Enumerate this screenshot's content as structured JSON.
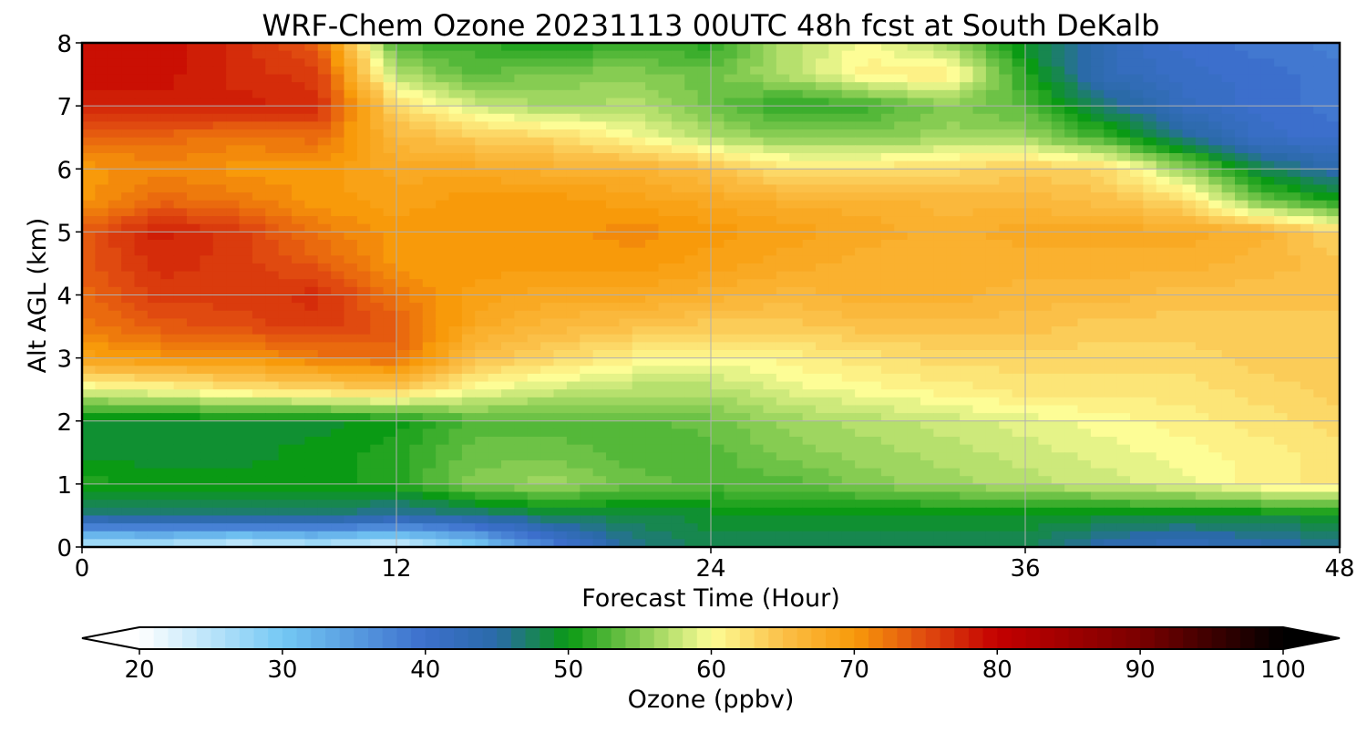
{
  "chart_data": {
    "type": "heatmap",
    "title": "WRF-Chem Ozone  20231113 00UTC 48h fcst at South DeKalb",
    "xlabel": "Forecast Time (Hour)",
    "ylabel": "Alt AGL (km)",
    "xlim": [
      0,
      48
    ],
    "ylim": [
      0,
      8
    ],
    "x_ticks": [
      "0",
      "12",
      "24",
      "36",
      "48"
    ],
    "y_ticks": [
      "0",
      "1",
      "2",
      "3",
      "4",
      "5",
      "6",
      "7",
      "8"
    ],
    "grid": true,
    "x": [
      0,
      3,
      6,
      9,
      12,
      15,
      18,
      21,
      24,
      27,
      30,
      33,
      36,
      39,
      42,
      45,
      48
    ],
    "y": [
      0,
      0.5,
      1,
      1.5,
      2,
      2.5,
      3,
      3.5,
      4,
      4.5,
      5,
      5.5,
      6,
      6.5,
      7,
      7.5,
      8
    ],
    "z": [
      [
        24,
        24,
        22,
        24,
        22,
        28,
        38,
        46,
        48,
        48,
        48,
        48,
        48,
        44,
        42,
        44,
        46
      ],
      [
        46,
        47,
        47,
        47,
        45,
        46,
        48,
        48,
        49,
        49,
        49,
        49,
        49,
        49,
        49,
        49,
        49
      ],
      [
        51,
        50,
        50,
        50,
        51,
        55,
        56,
        54,
        53,
        53,
        55,
        56,
        57,
        58,
        59,
        61,
        62
      ],
      [
        49,
        49,
        49,
        50,
        51,
        54,
        54,
        53,
        53,
        55,
        56,
        57,
        58,
        59,
        60,
        61,
        62
      ],
      [
        49,
        49,
        49,
        49,
        50,
        53,
        53,
        53,
        54,
        56,
        57,
        58,
        59,
        60,
        61,
        62,
        63
      ],
      [
        59,
        60,
        62,
        63,
        64,
        60,
        58,
        57,
        57,
        59,
        60,
        61,
        62,
        62,
        62,
        63,
        64
      ],
      [
        69,
        70,
        70,
        72,
        73,
        65,
        63,
        61,
        60,
        61,
        62,
        63,
        63,
        63,
        63,
        64,
        64
      ],
      [
        72,
        74,
        75,
        76,
        74,
        68,
        66,
        65,
        64,
        64,
        65,
        65,
        65,
        64,
        64,
        64,
        64
      ],
      [
        73,
        76,
        76,
        77,
        72,
        69,
        68,
        68,
        67,
        66,
        67,
        67,
        66,
        66,
        65,
        65,
        65
      ],
      [
        74,
        77,
        76,
        74,
        70,
        70,
        70,
        70,
        69,
        68,
        67,
        67,
        67,
        67,
        67,
        66,
        65
      ],
      [
        74,
        78,
        76,
        72,
        70,
        70,
        70,
        71,
        70,
        69,
        68,
        67,
        68,
        68,
        68,
        67,
        63
      ],
      [
        70,
        73,
        72,
        70,
        69,
        70,
        70,
        69,
        68,
        67,
        67,
        66,
        66,
        65,
        63,
        54,
        50
      ],
      [
        70,
        71,
        70,
        70,
        68,
        68,
        67,
        67,
        65,
        62,
        62,
        63,
        64,
        63,
        56,
        48,
        44
      ],
      [
        73,
        73,
        72,
        73,
        66,
        64,
        63,
        60,
        57,
        55,
        55,
        56,
        56,
        52,
        46,
        41,
        40
      ],
      [
        78,
        78,
        78,
        77,
        63,
        58,
        56,
        57,
        54,
        51,
        52,
        55,
        53,
        47,
        42,
        40,
        39
      ],
      [
        79,
        79,
        77,
        76,
        57,
        53,
        55,
        55,
        54,
        57,
        61,
        62,
        51,
        43,
        41,
        40,
        39
      ],
      [
        79,
        79,
        77,
        74,
        52,
        52,
        50,
        52,
        51,
        57,
        60,
        56,
        49,
        43,
        40,
        39,
        38
      ]
    ],
    "colorbar": {
      "label": "Ozone  (ppbv)",
      "min": 20,
      "max": 100,
      "ticks": [
        "20",
        "30",
        "40",
        "50",
        "60",
        "70",
        "80",
        "90",
        "100"
      ],
      "extend": "both",
      "stops": [
        {
          "v": 20,
          "c": "#ffffff"
        },
        {
          "v": 30,
          "c": "#74c8f4"
        },
        {
          "v": 40,
          "c": "#3c6fcc"
        },
        {
          "v": 45,
          "c": "#2a6aa8"
        },
        {
          "v": 50,
          "c": "#0a9a14"
        },
        {
          "v": 55,
          "c": "#86cc52"
        },
        {
          "v": 60,
          "c": "#fdfd96"
        },
        {
          "v": 65,
          "c": "#fbc048"
        },
        {
          "v": 70,
          "c": "#f89a0a"
        },
        {
          "v": 75,
          "c": "#e04a10"
        },
        {
          "v": 80,
          "c": "#c40000"
        },
        {
          "v": 90,
          "c": "#7a0000"
        },
        {
          "v": 100,
          "c": "#000000"
        }
      ]
    }
  }
}
